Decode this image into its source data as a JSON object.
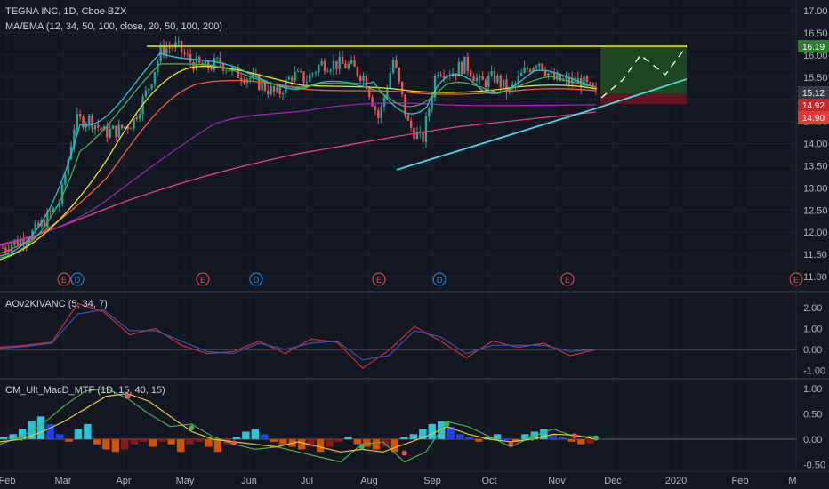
{
  "header": {
    "symbol": "TEGNA INC, 1D, Cboe BZX",
    "indicator_ma": "MA/EMA (12, 34, 50, 100, close, 20, 50, 100, 200)",
    "indicator_ao": "AOv2KIVANC (5, 34, 7)",
    "indicator_macd": "CM_Ult_MacD_MTF (1D, 15, 40, 15)"
  },
  "colors": {
    "background": "#131722",
    "up_candle": "#26a69a",
    "down_candle": "#ef5350",
    "resistance": "#f5e90a",
    "trendline": "#4dd6e8",
    "target_box": "#1f4d1f",
    "stop_box": "#6b1520"
  },
  "chart_data": [
    {
      "type": "candlestick",
      "title": "TEGNA INC, 1D, Cboe BZX",
      "x_ticks": [
        "Feb",
        "Mar",
        "Apr",
        "May",
        "Jun",
        "Jul",
        "Aug",
        "Sep",
        "Oct",
        "Nov",
        "Dec",
        "2020",
        "Feb",
        "M"
      ],
      "y_ticks": [
        "17.00",
        "16.50",
        "16.00",
        "15.50",
        "15.00",
        "14.50",
        "14.00",
        "13.50",
        "13.00",
        "12.50",
        "12.00",
        "11.50",
        "11.00"
      ],
      "ylim": [
        10.85,
        17.15
      ],
      "price_tags": [
        {
          "value": 16.19,
          "label": "16.19",
          "bg": "#2e7d32"
        },
        {
          "value": 15.12,
          "label": "15.12",
          "bg": "#363a45"
        },
        {
          "value": 14.92,
          "label": "14.92",
          "bg": "#c62828"
        },
        {
          "value": 14.9,
          "label": "14.90",
          "bg": "#e53935"
        }
      ],
      "close_approx": [
        11.65,
        11.8,
        11.95,
        12.3,
        12.7,
        14.5,
        14.55,
        14.25,
        14.3,
        14.5,
        15.2,
        16.15,
        16.2,
        15.85,
        15.7,
        15.85,
        15.6,
        15.5,
        15.3,
        15.1,
        15.55,
        15.45,
        15.8,
        15.8,
        15.75,
        15.5,
        14.55,
        15.9,
        14.45,
        14.05,
        15.7,
        15.6,
        15.8,
        15.35,
        15.5,
        15.15,
        15.6,
        15.9,
        15.45,
        15.4,
        15.4,
        15.1
      ],
      "resistance": 16.19,
      "trendline_from": 13.38,
      "trendline_to": 15.45,
      "earnings_markers": [
        "E",
        "D",
        "E",
        "D",
        "E",
        "D",
        "E",
        "E"
      ]
    },
    {
      "type": "line",
      "title": "AOv2KIVANC (5, 34, 7)",
      "y_ticks": [
        "2.00",
        "1.00",
        "0.00",
        "-1.00"
      ],
      "ylim": [
        -1.55,
        2.5
      ],
      "series": [
        {
          "color": "#d32f2f",
          "values": [
            0.1,
            0.2,
            0.35,
            2.2,
            1.8,
            0.7,
            1.0,
            0.2,
            -0.2,
            -0.1,
            0.4,
            -0.2,
            0.5,
            0.35,
            -0.9,
            -0.05,
            1.1,
            0.4,
            -0.4,
            0.4,
            0.1,
            0.3,
            -0.3,
            0.0
          ]
        },
        {
          "color": "#3f51b5",
          "values": [
            0.05,
            0.15,
            0.3,
            1.7,
            1.9,
            0.9,
            0.9,
            0.4,
            -0.1,
            -0.2,
            0.3,
            0.0,
            0.3,
            0.4,
            -0.5,
            -0.3,
            0.9,
            0.6,
            -0.2,
            0.2,
            0.2,
            0.2,
            -0.1,
            0.0
          ]
        }
      ]
    },
    {
      "type": "bar",
      "title": "CM_Ult_MacD_MTF (1D, 15, 40, 15)",
      "y_ticks": [
        "1.00",
        "0.50",
        "0.00",
        "-0.50"
      ],
      "ylim": [
        -0.6,
        1.1
      ],
      "histogram": [
        0.05,
        0.1,
        0.2,
        0.35,
        0.45,
        0.3,
        0.1,
        -0.05,
        0.2,
        0.3,
        -0.1,
        -0.2,
        -0.25,
        -0.2,
        -0.1,
        -0.05,
        -0.15,
        -0.05,
        -0.1,
        -0.25,
        -0.1,
        -0.05,
        -0.15,
        -0.25,
        -0.1,
        0.05,
        0.15,
        0.2,
        0.1,
        -0.05,
        -0.1,
        -0.15,
        -0.2,
        -0.15,
        -0.25,
        -0.15,
        -0.05,
        0.05,
        -0.1,
        -0.15,
        -0.2,
        -0.15,
        -0.25,
        0.05,
        0.1,
        0.2,
        0.3,
        0.35,
        0.25,
        0.1,
        0.05,
        -0.05,
        0.05,
        0.1,
        0.0,
        -0.05,
        0.1,
        0.15,
        0.2,
        0.1,
        0.05,
        -0.05,
        -0.1,
        -0.08
      ],
      "macd": [
        -0.1,
        0.05,
        0.3,
        0.65,
        0.95,
        1.0,
        0.8,
        0.5,
        0.25,
        0.3,
        0.05,
        -0.1,
        -0.2,
        -0.15,
        -0.25,
        -0.35,
        -0.45,
        -0.1,
        -0.05,
        -0.45,
        -0.25,
        0.35,
        0.25,
        0.05,
        -0.15,
        0.05,
        0.2,
        0.05,
        0.05
      ],
      "signal": [
        -0.05,
        0.0,
        0.15,
        0.35,
        0.6,
        0.85,
        0.9,
        0.75,
        0.45,
        0.15,
        0.0,
        -0.05,
        -0.1,
        -0.15,
        -0.05,
        -0.15,
        -0.25,
        -0.2,
        -0.25,
        -0.1,
        0.05,
        0.25,
        0.1,
        0.0,
        -0.05,
        0.0,
        0.1,
        0.08,
        0.0
      ]
    }
  ]
}
